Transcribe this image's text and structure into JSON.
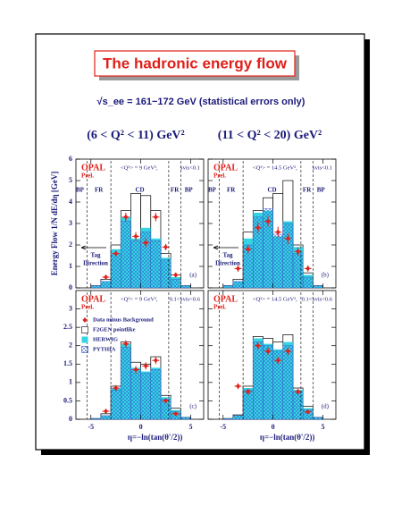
{
  "title": "The hadronic energy flow",
  "subtitle": "√s_ee = 161−172 GeV (statistical errors only)",
  "q2_ranges": [
    "(6 < Q² < 11) GeV²",
    "(11 < Q² < 20) GeV²"
  ],
  "y_label": "Energy Flow    1/N dE/dη  [GeV]",
  "chart_data": [
    {
      "type": "histogram",
      "experiment": "OPAL",
      "status": "Prel.",
      "q2": "<Q²> = 9 GeV²,",
      "xvis": "xvis<0.1",
      "panel_label": "(a)",
      "regions": [
        "BP",
        "FR",
        "CD",
        "FR",
        "BP"
      ],
      "region_bounds": [
        -5.4,
        -3,
        2.8,
        4
      ],
      "tag_label": [
        "Tag",
        "Direction"
      ],
      "xlim": [
        -6.5,
        6.3
      ],
      "ylim": [
        0,
        6
      ],
      "xticks": [
        -5,
        0,
        5
      ],
      "yticks": [
        0,
        1,
        2,
        3,
        4,
        5,
        6
      ],
      "tick_labels": {
        "x": false,
        "y": true
      },
      "bins": [
        -5,
        -4,
        -3,
        -2,
        -1,
        0,
        1,
        2,
        3,
        4,
        5
      ],
      "series": [
        {
          "style": "outline",
          "color": "#000000",
          "values": [
            0.1,
            0.4,
            2.0,
            3.6,
            4.4,
            4.3,
            3.6,
            1.6,
            0.6,
            0.1
          ]
        },
        {
          "style": "filled",
          "color": "#35d3e3",
          "values": [
            0.1,
            0.3,
            1.8,
            3.3,
            2.3,
            2.8,
            2.3,
            1.4,
            0.5,
            0.1
          ]
        },
        {
          "style": "hatched",
          "color": "#2f56c8",
          "values": [
            0.1,
            0.3,
            1.6,
            3.1,
            2.2,
            2.6,
            2.2,
            1.3,
            0.4,
            0.1
          ]
        },
        {
          "style": "points",
          "color": "#e0201a",
          "x": [
            -3.5,
            -2.5,
            -1.5,
            -0.5,
            0.5,
            1.5,
            2.5,
            3.5
          ],
          "values": [
            0.5,
            1.6,
            3.3,
            2.4,
            2.1,
            3.3,
            1.9,
            0.6
          ],
          "errors": [
            0.1,
            0.15,
            0.2,
            0.2,
            0.2,
            0.2,
            0.15,
            0.1
          ]
        }
      ]
    },
    {
      "type": "histogram",
      "experiment": "OPAL",
      "status": "Prel.",
      "q2": "<Q²> = 14.5 GeV²,",
      "xvis": "xvis<0.1",
      "panel_label": "(b)",
      "regions": [
        "BP",
        "FR",
        "CD",
        "FR",
        "BP"
      ],
      "region_bounds": [
        -5.4,
        -3,
        2.8,
        4
      ],
      "tag_label": [
        "Tag",
        "Direction"
      ],
      "xlim": [
        -6.5,
        6.3
      ],
      "ylim": [
        0,
        6
      ],
      "xticks": [
        -5,
        0,
        5
      ],
      "yticks": [
        0,
        1,
        2,
        3,
        4,
        5,
        6
      ],
      "tick_labels": {
        "x": false,
        "y": false
      },
      "bins": [
        -5,
        -4,
        -3,
        -2,
        -1,
        0,
        1,
        2,
        3,
        4,
        5
      ],
      "series": [
        {
          "style": "outline",
          "color": "#000000",
          "values": [
            0.1,
            0.4,
            2.6,
            3.6,
            4.2,
            4.4,
            5.0,
            2.0,
            0.7,
            0.1
          ]
        },
        {
          "style": "filled",
          "color": "#35d3e3",
          "values": [
            0.1,
            0.3,
            2.3,
            3.5,
            3.6,
            2.4,
            3.1,
            1.9,
            0.6,
            0.1
          ]
        },
        {
          "style": "hatched",
          "color": "#2f56c8",
          "values": [
            0.1,
            0.3,
            2.0,
            3.3,
            3.7,
            2.5,
            3.0,
            1.6,
            0.5,
            0.1
          ]
        },
        {
          "style": "points",
          "color": "#e0201a",
          "x": [
            -3.5,
            -2.5,
            -1.5,
            -0.5,
            0.5,
            1.5,
            2.5,
            3.5
          ],
          "values": [
            0.9,
            1.8,
            2.8,
            3.1,
            2.6,
            2.3,
            1.7,
            0.9
          ],
          "errors": [
            0.15,
            0.2,
            0.25,
            0.25,
            0.25,
            0.25,
            0.2,
            0.15
          ]
        }
      ]
    },
    {
      "type": "histogram",
      "experiment": "OPAL",
      "status": "Prel.",
      "q2": "<Q²> = 9 GeV²,",
      "xvis": "0.1<xvis<0.6",
      "panel_label": "(c)",
      "region_bounds": [
        -5.4,
        -3,
        2.8,
        4
      ],
      "xlabel": "η=−ln(tan(θ'/2))",
      "xlim": [
        -6.5,
        6.3
      ],
      "ylim": [
        0,
        3.5
      ],
      "xticks": [
        -5,
        0,
        5
      ],
      "yticks": [
        0,
        0.5,
        1,
        1.5,
        2,
        2.5,
        3
      ],
      "tick_labels": {
        "x": true,
        "y": true
      },
      "bins": [
        -5,
        -4,
        -3,
        -2,
        -1,
        0,
        1,
        2,
        3,
        4,
        5
      ],
      "legend": true,
      "series": [
        {
          "name": "F2GEN pointlike",
          "style": "outline",
          "color": "#000000",
          "values": [
            0.02,
            0.15,
            0.9,
            2.1,
            1.55,
            1.5,
            1.7,
            0.65,
            0.3,
            0.05
          ]
        },
        {
          "name": "HERWIG",
          "style": "filled",
          "color": "#35d3e3",
          "values": [
            0.02,
            0.1,
            0.85,
            2.05,
            1.4,
            1.3,
            1.4,
            0.6,
            0.25,
            0.05
          ]
        },
        {
          "name": "PYTHIA",
          "style": "hatched",
          "color": "#2f56c8",
          "values": [
            0.02,
            0.1,
            0.8,
            1.95,
            1.35,
            1.25,
            1.35,
            0.55,
            0.2,
            0.05
          ]
        },
        {
          "name": "Data minus Background",
          "style": "points",
          "color": "#e0201a",
          "x": [
            -3.5,
            -2.5,
            -1.5,
            -0.5,
            0.5,
            1.5,
            2.5,
            3.5
          ],
          "values": [
            0.22,
            0.85,
            2.05,
            1.35,
            1.45,
            1.6,
            0.5,
            0.15
          ],
          "errors": [
            0.05,
            0.08,
            0.1,
            0.1,
            0.1,
            0.1,
            0.07,
            0.05
          ]
        }
      ]
    },
    {
      "type": "histogram",
      "experiment": "OPAL",
      "status": "Prel.",
      "q2": "<Q²> = 14.5 GeV²,",
      "xvis": "0.1<xvis<0.6",
      "panel_label": "(d)",
      "region_bounds": [
        -5.4,
        -3,
        2.8,
        4
      ],
      "xlabel": "η=−ln(tan(θ'/2))",
      "xlim": [
        -6.5,
        6.3
      ],
      "ylim": [
        0,
        3.5
      ],
      "xticks": [
        -5,
        0,
        5
      ],
      "yticks": [
        0,
        0.5,
        1,
        1.5,
        2,
        2.5,
        3
      ],
      "tick_labels": {
        "x": true,
        "y": false
      },
      "bins": [
        -5,
        -4,
        -3,
        -2,
        -1,
        0,
        1,
        2,
        3,
        4,
        5
      ],
      "series": [
        {
          "style": "outline",
          "color": "#000000",
          "values": [
            0.02,
            0.12,
            0.9,
            2.25,
            2.2,
            2.1,
            2.3,
            0.85,
            0.35,
            0.05
          ]
        },
        {
          "style": "filled",
          "color": "#35d3e3",
          "values": [
            0.02,
            0.1,
            0.85,
            2.2,
            2.05,
            1.9,
            2.1,
            0.8,
            0.3,
            0.05
          ]
        },
        {
          "style": "hatched",
          "color": "#2f56c8",
          "values": [
            0.02,
            0.1,
            0.8,
            2.1,
            2.0,
            1.85,
            2.0,
            0.75,
            0.25,
            0.05
          ]
        },
        {
          "style": "points",
          "color": "#e0201a",
          "x": [
            -3.5,
            -2.5,
            -1.5,
            -0.5,
            0.5,
            1.5,
            2.5,
            3.5
          ],
          "values": [
            0.9,
            0.75,
            2.0,
            1.85,
            1.6,
            1.85,
            0.75,
            0.2
          ],
          "errors": [
            0.08,
            0.08,
            0.1,
            0.1,
            0.1,
            0.1,
            0.08,
            0.05
          ]
        }
      ]
    }
  ]
}
